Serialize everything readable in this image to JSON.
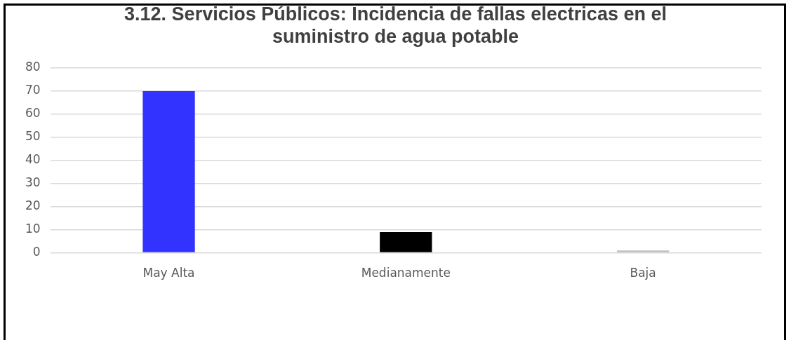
{
  "chart_data": {
    "type": "bar",
    "title": "3.12. Servicios Públicos: Incidencia de fallas electricas en el suministro de agua potable",
    "categories": [
      "May Alta",
      "Medianamente",
      "Baja"
    ],
    "series": [
      {
        "colors": [
          "#3333ff",
          "#000000",
          "#bfbfbf"
        ],
        "values": [
          70,
          9,
          1
        ]
      }
    ],
    "ylim": [
      0,
      80
    ],
    "yticks": [
      0,
      10,
      20,
      30,
      40,
      50,
      60,
      70,
      80
    ],
    "grid": "y",
    "legend": false
  }
}
